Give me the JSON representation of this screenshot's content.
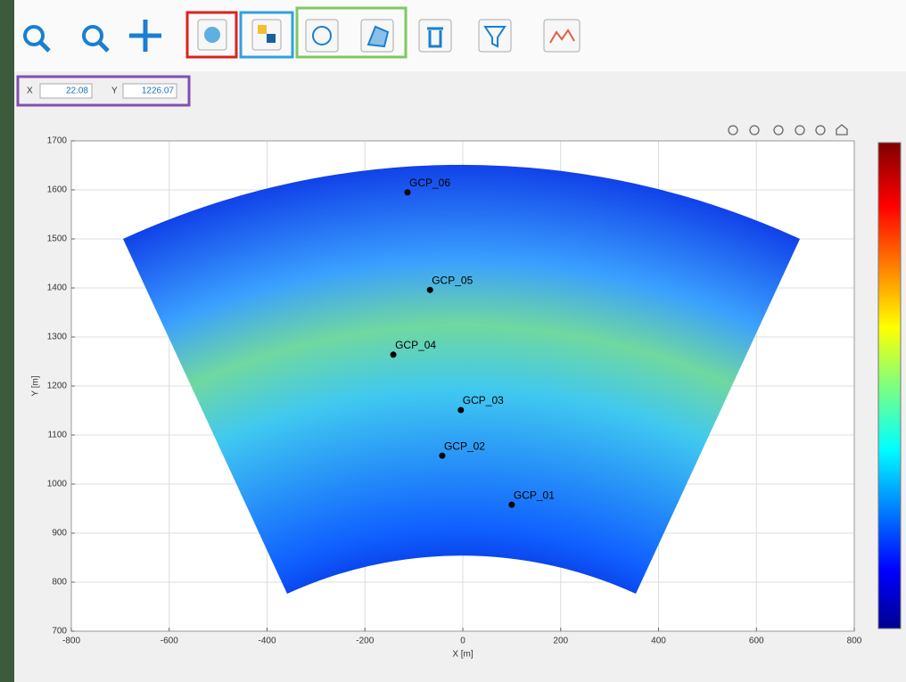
{
  "coords": {
    "x_label": "X",
    "x_value": "22.08",
    "y_label": "Y",
    "y_value": "1226.07"
  },
  "chart_data": {
    "type": "scatter",
    "xlabel": "X [m]",
    "ylabel": "Y [m]",
    "x": [
      -113,
      -67,
      -142,
      -4,
      -42,
      100
    ],
    "values": [
      1595,
      1396,
      1264,
      1151,
      1058,
      958
    ],
    "labels": [
      "GCP_06",
      "GCP_05",
      "GCP_04",
      "GCP_03",
      "GCP_02",
      "GCP_01"
    ],
    "color": "#000000",
    "xlim": [
      -800,
      800
    ],
    "xticks": [
      -800,
      -600,
      -400,
      -200,
      0,
      200,
      400,
      600,
      800
    ],
    "ylim": [
      700,
      1700
    ],
    "yticks": [
      700,
      800,
      900,
      1000,
      1100,
      1200,
      1300,
      1400,
      1500,
      1600,
      1700
    ],
    "grid": true
  }
}
